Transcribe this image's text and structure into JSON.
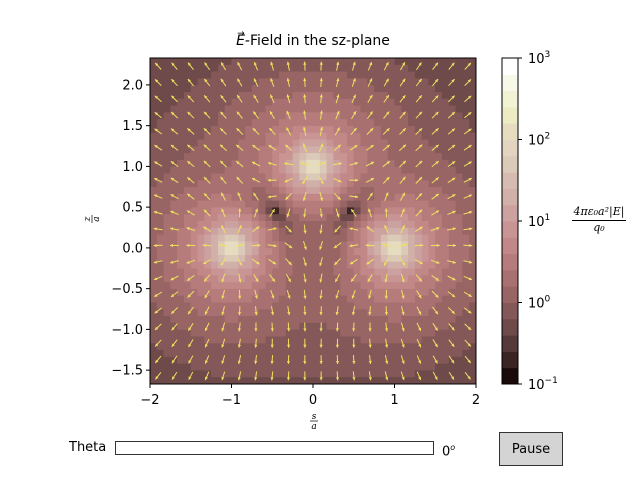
{
  "window": {
    "title": "E-Field in the sz-plane"
  },
  "plot": {
    "title_symbol": "E",
    "title_rest": "-Field in the sz-plane",
    "xlabel_num": "s",
    "xlabel_den": "a",
    "ylabel_num": "z",
    "ylabel_den": "a",
    "x_ticks": [
      "−2",
      "−1",
      "0",
      "1",
      "2"
    ],
    "y_ticks": [
      "2.0",
      "1.5",
      "1.0",
      "0.5",
      "0.0",
      "−0.5",
      "−1.0",
      "−1.5"
    ]
  },
  "colorbar": {
    "label_num": "4πε₀a²|E|",
    "label_den": "q₀",
    "ticks": [
      {
        "base": "10",
        "exp": "3"
      },
      {
        "base": "10",
        "exp": "2"
      },
      {
        "base": "10",
        "exp": "1"
      },
      {
        "base": "10",
        "exp": "0"
      },
      {
        "base": "10",
        "exp": "−1"
      }
    ],
    "colors": [
      "#1a0a0a",
      "#3a2424",
      "#563a3a",
      "#6e4a4a",
      "#845858",
      "#986464",
      "#a87070",
      "#b67c7c",
      "#c28888",
      "#c89494",
      "#cca2a0",
      "#d0b0a8",
      "#d6bcb0",
      "#dccab8",
      "#e2d4be",
      "#e6dcc0",
      "#ecebc4",
      "#f2f2d4",
      "#f8f8e8",
      "#ffffff"
    ]
  },
  "chart_data": {
    "type": "heatmap",
    "title": "E-Field in the sz-plane",
    "xlabel": "s/a",
    "ylabel": "z/a",
    "xlim": [
      -2,
      2
    ],
    "ylim": [
      -1.67,
      2.33
    ],
    "colorbar_label": "4πε₀a²|E|/q₀",
    "color_scale": "log",
    "color_range": [
      0.1,
      1000
    ],
    "charges": [
      {
        "s": -1,
        "z": 0
      },
      {
        "s": 0,
        "z": 1
      },
      {
        "s": 1,
        "z": 0
      }
    ],
    "field_minimum": {
      "s": 0,
      "z": -0.33
    },
    "quiver_color": "#f0e060"
  },
  "controls": {
    "slider_label": "Theta",
    "slider_value_num": "0",
    "slider_value_unit": "o",
    "slider_fraction": 0,
    "pause_label": "Pause"
  }
}
